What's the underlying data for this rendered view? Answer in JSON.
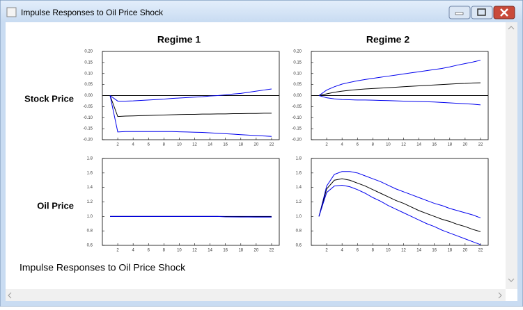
{
  "window": {
    "title": "Impulse Responses to Oil Price Shock"
  },
  "columns": [
    "Regime 1",
    "Regime 2"
  ],
  "rows": [
    "Stock Price",
    "Oil Price"
  ],
  "caption": "Impulse Responses to Oil Price Shock",
  "chart_data": [
    {
      "type": "line",
      "zero_line": true,
      "x": [
        1,
        2,
        3,
        4,
        5,
        6,
        7,
        8,
        9,
        10,
        11,
        12,
        13,
        14,
        15,
        16,
        17,
        18,
        19,
        20,
        21,
        22
      ],
      "xlim": [
        0,
        23
      ],
      "xticks": [
        2,
        4,
        6,
        8,
        10,
        12,
        14,
        16,
        18,
        20,
        22
      ],
      "ylim": [
        -0.2,
        0.2
      ],
      "yticks": [
        {
          "value": 0.2,
          "label": "0.20"
        },
        {
          "value": 0.15,
          "label": "0.15"
        },
        {
          "value": 0.1,
          "label": "0.10"
        },
        {
          "value": 0.05,
          "label": "0.05"
        },
        {
          "value": 0,
          "label": "0.00"
        },
        {
          "value": -0.05,
          "label": "-0.05"
        },
        {
          "value": -0.1,
          "label": "-0.10"
        },
        {
          "value": -0.15,
          "label": "-0.15"
        },
        {
          "value": -0.2,
          "label": "-0.20"
        }
      ],
      "series": [
        {
          "color": "#0000ee",
          "values": [
            0,
            -0.025,
            -0.025,
            -0.024,
            -0.022,
            -0.02,
            -0.018,
            -0.016,
            -0.013,
            -0.011,
            -0.009,
            -0.007,
            -0.005,
            -0.002,
            0,
            0.003,
            0.007,
            0.01,
            0.015,
            0.02,
            0.025,
            0.03
          ]
        },
        {
          "color": "#000000",
          "values": [
            0,
            -0.095,
            -0.093,
            -0.092,
            -0.091,
            -0.09,
            -0.089,
            -0.088,
            -0.087,
            -0.086,
            -0.085,
            -0.085,
            -0.084,
            -0.084,
            -0.083,
            -0.083,
            -0.082,
            -0.082,
            -0.081,
            -0.081,
            -0.08,
            -0.08
          ]
        },
        {
          "color": "#0000ee",
          "values": [
            0,
            -0.165,
            -0.163,
            -0.163,
            -0.163,
            -0.163,
            -0.163,
            -0.163,
            -0.163,
            -0.164,
            -0.165,
            -0.166,
            -0.167,
            -0.169,
            -0.171,
            -0.173,
            -0.175,
            -0.177,
            -0.179,
            -0.181,
            -0.183,
            -0.185
          ]
        }
      ]
    },
    {
      "type": "line",
      "zero_line": true,
      "x": [
        1,
        2,
        3,
        4,
        5,
        6,
        7,
        8,
        9,
        10,
        11,
        12,
        13,
        14,
        15,
        16,
        17,
        18,
        19,
        20,
        21,
        22
      ],
      "xlim": [
        0,
        23
      ],
      "xticks": [
        2,
        4,
        6,
        8,
        10,
        12,
        14,
        16,
        18,
        20,
        22
      ],
      "ylim": [
        -0.2,
        0.2
      ],
      "yticks": [
        {
          "value": 0.2,
          "label": "0.20"
        },
        {
          "value": 0.15,
          "label": "0.15"
        },
        {
          "value": 0.1,
          "label": "0.10"
        },
        {
          "value": 0.05,
          "label": "0.05"
        },
        {
          "value": 0,
          "label": "0.00"
        },
        {
          "value": -0.05,
          "label": "-0.05"
        },
        {
          "value": -0.1,
          "label": "-0.10"
        },
        {
          "value": -0.15,
          "label": "-0.15"
        },
        {
          "value": -0.2,
          "label": "-0.20"
        }
      ],
      "series": [
        {
          "color": "#0000ee",
          "values": [
            0,
            0.025,
            0.04,
            0.052,
            0.06,
            0.067,
            0.073,
            0.078,
            0.083,
            0.088,
            0.093,
            0.098,
            0.103,
            0.108,
            0.113,
            0.118,
            0.123,
            0.13,
            0.138,
            0.145,
            0.152,
            0.16
          ]
        },
        {
          "color": "#000000",
          "values": [
            0,
            0.008,
            0.015,
            0.02,
            0.024,
            0.027,
            0.03,
            0.032,
            0.034,
            0.036,
            0.038,
            0.04,
            0.042,
            0.044,
            0.046,
            0.048,
            0.05,
            0.052,
            0.054,
            0.055,
            0.057,
            0.058
          ]
        },
        {
          "color": "#0000ee",
          "values": [
            0,
            -0.01,
            -0.015,
            -0.018,
            -0.019,
            -0.02,
            -0.02,
            -0.021,
            -0.022,
            -0.023,
            -0.024,
            -0.025,
            -0.026,
            -0.027,
            -0.028,
            -0.029,
            -0.031,
            -0.033,
            -0.035,
            -0.037,
            -0.039,
            -0.042
          ]
        }
      ]
    },
    {
      "type": "line",
      "zero_line": false,
      "x": [
        1,
        2,
        3,
        4,
        5,
        6,
        7,
        8,
        9,
        10,
        11,
        12,
        13,
        14,
        15,
        16,
        17,
        18,
        19,
        20,
        21,
        22
      ],
      "xlim": [
        0,
        23
      ],
      "xticks": [
        2,
        4,
        6,
        8,
        10,
        12,
        14,
        16,
        18,
        20,
        22
      ],
      "ylim": [
        0.6,
        1.8
      ],
      "yticks": [
        1.8,
        1.6,
        1.4,
        1.2,
        {
          "value": 1,
          "label": "1.0"
        },
        0.8,
        0.6
      ],
      "series": [
        {
          "color": "#0000ee",
          "values": [
            1,
            1,
            1,
            1,
            1,
            1,
            1,
            1,
            1,
            1,
            1,
            1,
            1,
            1,
            1,
            1,
            1,
            1,
            1,
            1,
            1,
            1
          ]
        },
        {
          "color": "#000000",
          "values": [
            1,
            1,
            1,
            1,
            1,
            1,
            1,
            1,
            1,
            1,
            1,
            1,
            1,
            1,
            1,
            0.998,
            0.997,
            0.997,
            0.996,
            0.996,
            0.996,
            0.996
          ]
        },
        {
          "color": "#0000ee",
          "values": [
            1,
            1,
            1,
            1,
            1,
            1,
            1,
            1,
            1,
            1,
            1,
            1,
            1,
            1,
            1,
            0.993,
            0.992,
            0.991,
            0.991,
            0.99,
            0.99,
            0.99
          ]
        }
      ]
    },
    {
      "type": "line",
      "zero_line": false,
      "x": [
        1,
        2,
        3,
        4,
        5,
        6,
        7,
        8,
        9,
        10,
        11,
        12,
        13,
        14,
        15,
        16,
        17,
        18,
        19,
        20,
        21,
        22
      ],
      "xlim": [
        0,
        23
      ],
      "xticks": [
        2,
        4,
        6,
        8,
        10,
        12,
        14,
        16,
        18,
        20,
        22
      ],
      "ylim": [
        0.6,
        1.8
      ],
      "yticks": [
        1.8,
        1.6,
        1.4,
        1.2,
        {
          "value": 1,
          "label": "1.0"
        },
        0.8,
        0.6
      ],
      "series": [
        {
          "color": "#0000ee",
          "values": [
            1,
            1.42,
            1.58,
            1.62,
            1.62,
            1.6,
            1.56,
            1.52,
            1.48,
            1.43,
            1.38,
            1.34,
            1.3,
            1.26,
            1.22,
            1.18,
            1.15,
            1.11,
            1.08,
            1.05,
            1.02,
            0.98
          ]
        },
        {
          "color": "#000000",
          "values": [
            1,
            1.38,
            1.5,
            1.52,
            1.5,
            1.46,
            1.42,
            1.37,
            1.32,
            1.27,
            1.22,
            1.18,
            1.13,
            1.08,
            1.04,
            1,
            0.96,
            0.93,
            0.89,
            0.86,
            0.82,
            0.79
          ]
        },
        {
          "color": "#0000ee",
          "values": [
            1,
            1.33,
            1.42,
            1.43,
            1.41,
            1.37,
            1.32,
            1.26,
            1.21,
            1.15,
            1.1,
            1.05,
            1,
            0.95,
            0.9,
            0.86,
            0.81,
            0.77,
            0.73,
            0.69,
            0.65,
            0.61
          ]
        }
      ]
    }
  ]
}
